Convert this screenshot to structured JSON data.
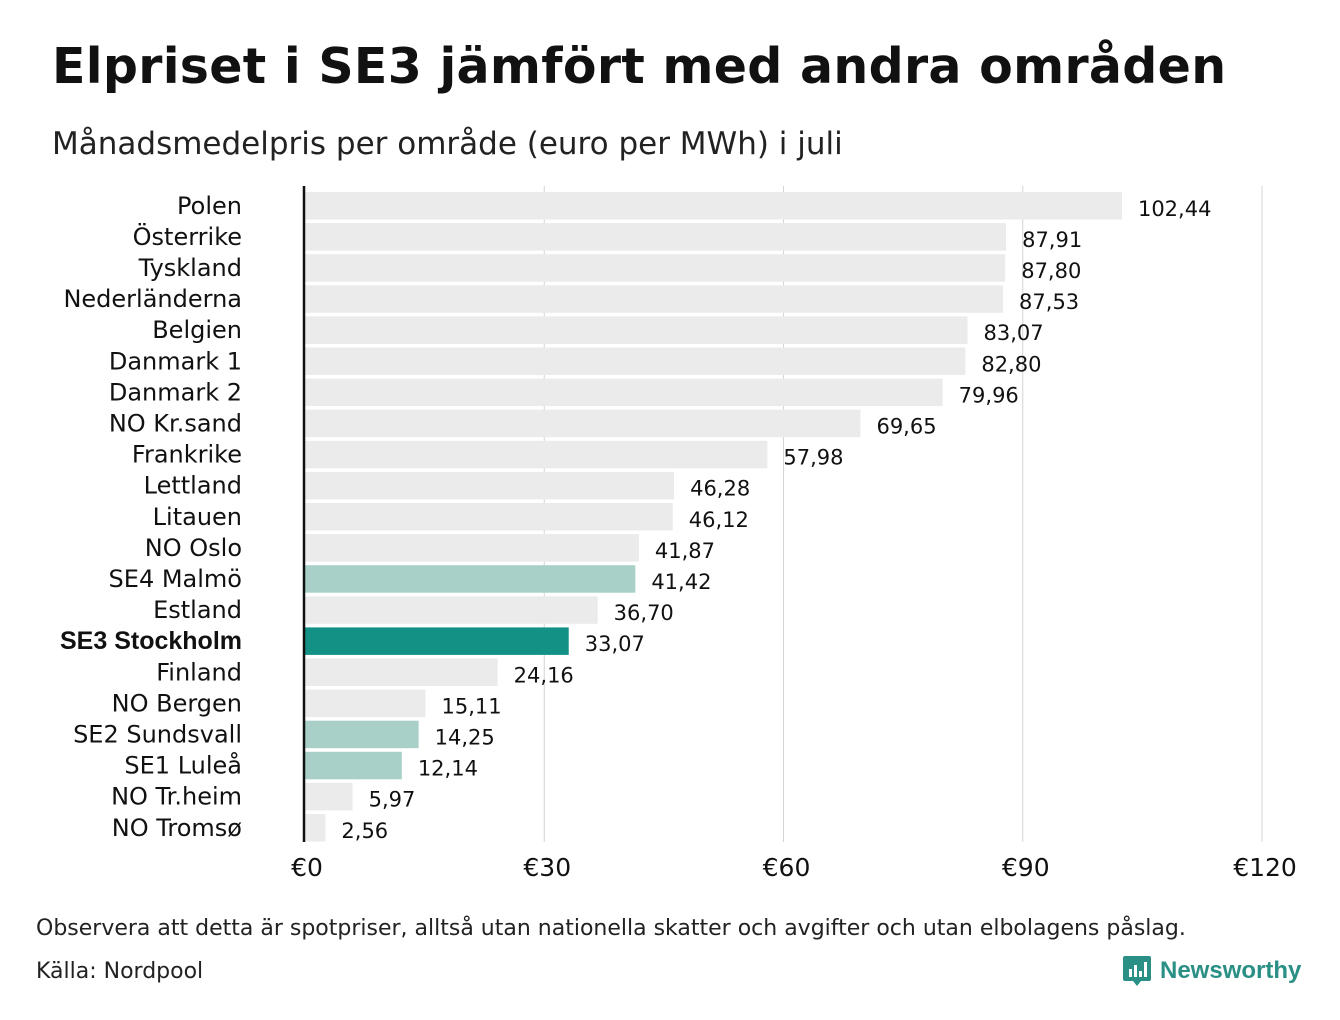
{
  "header": {
    "title": "Elpriset i SE3 jämfört med andra områden",
    "subtitle": "Månadsmedelpris per område (euro per MWh) i juli"
  },
  "footer": {
    "note": "Observera att detta är spotpriser, alltså utan nationella skatter och avgifter och utan elbolagens påslag.",
    "source": "Källa: Nordpool",
    "brand": "Newsworthy"
  },
  "chart_data": {
    "type": "bar",
    "orientation": "horizontal",
    "title": "Elpriset i SE3 jämfört med andra områden",
    "subtitle": "Månadsmedelpris per område (euro per MWh) i juli",
    "xlim": [
      0,
      120
    ],
    "xticks": [
      0,
      30,
      60,
      90,
      120
    ],
    "xtick_labels": [
      "€0",
      "€30",
      "€60",
      "€90",
      "€120"
    ],
    "grid": "vertical",
    "categories": [
      "Polen",
      "Österrike",
      "Tyskland",
      "Nederländerna",
      "Belgien",
      "Danmark  1",
      "Danmark  2",
      "NO Kr.sand",
      "Frankrike",
      "Lettland",
      "Litauen",
      "NO Oslo",
      "SE4  Malmö",
      "Estland",
      "SE3 Stockholm",
      "Finland",
      "NO Bergen",
      "SE2  Sundsvall",
      "SE1  Luleå",
      "NO Tr.heim",
      "NO Tromsø"
    ],
    "values": [
      102.44,
      87.91,
      87.8,
      87.53,
      83.07,
      82.8,
      79.96,
      69.65,
      57.98,
      46.28,
      46.12,
      41.87,
      41.42,
      36.7,
      33.07,
      24.16,
      15.11,
      14.25,
      12.14,
      5.97,
      2.56
    ],
    "value_labels": [
      "102,44",
      "87,91",
      "87,80",
      "87,53",
      "83,07",
      "82,80",
      "79,96",
      "69,65",
      "57,98",
      "46,28",
      "46,12",
      "41,87",
      "41,42",
      "36,70",
      "33,07",
      "24,16",
      "15,11",
      "14,25",
      "12,14",
      "5,97",
      "2,56"
    ],
    "highlight": "SE3 Stockholm",
    "swedish_areas": [
      "SE4  Malmö",
      "SE2  Sundsvall",
      "SE1  Luleå"
    ],
    "colors": {
      "default": "#ebebeb",
      "swedish": "#a8d0c8",
      "highlight": "#139185",
      "grid": "#d4d4d4",
      "axis": "#111111"
    }
  }
}
